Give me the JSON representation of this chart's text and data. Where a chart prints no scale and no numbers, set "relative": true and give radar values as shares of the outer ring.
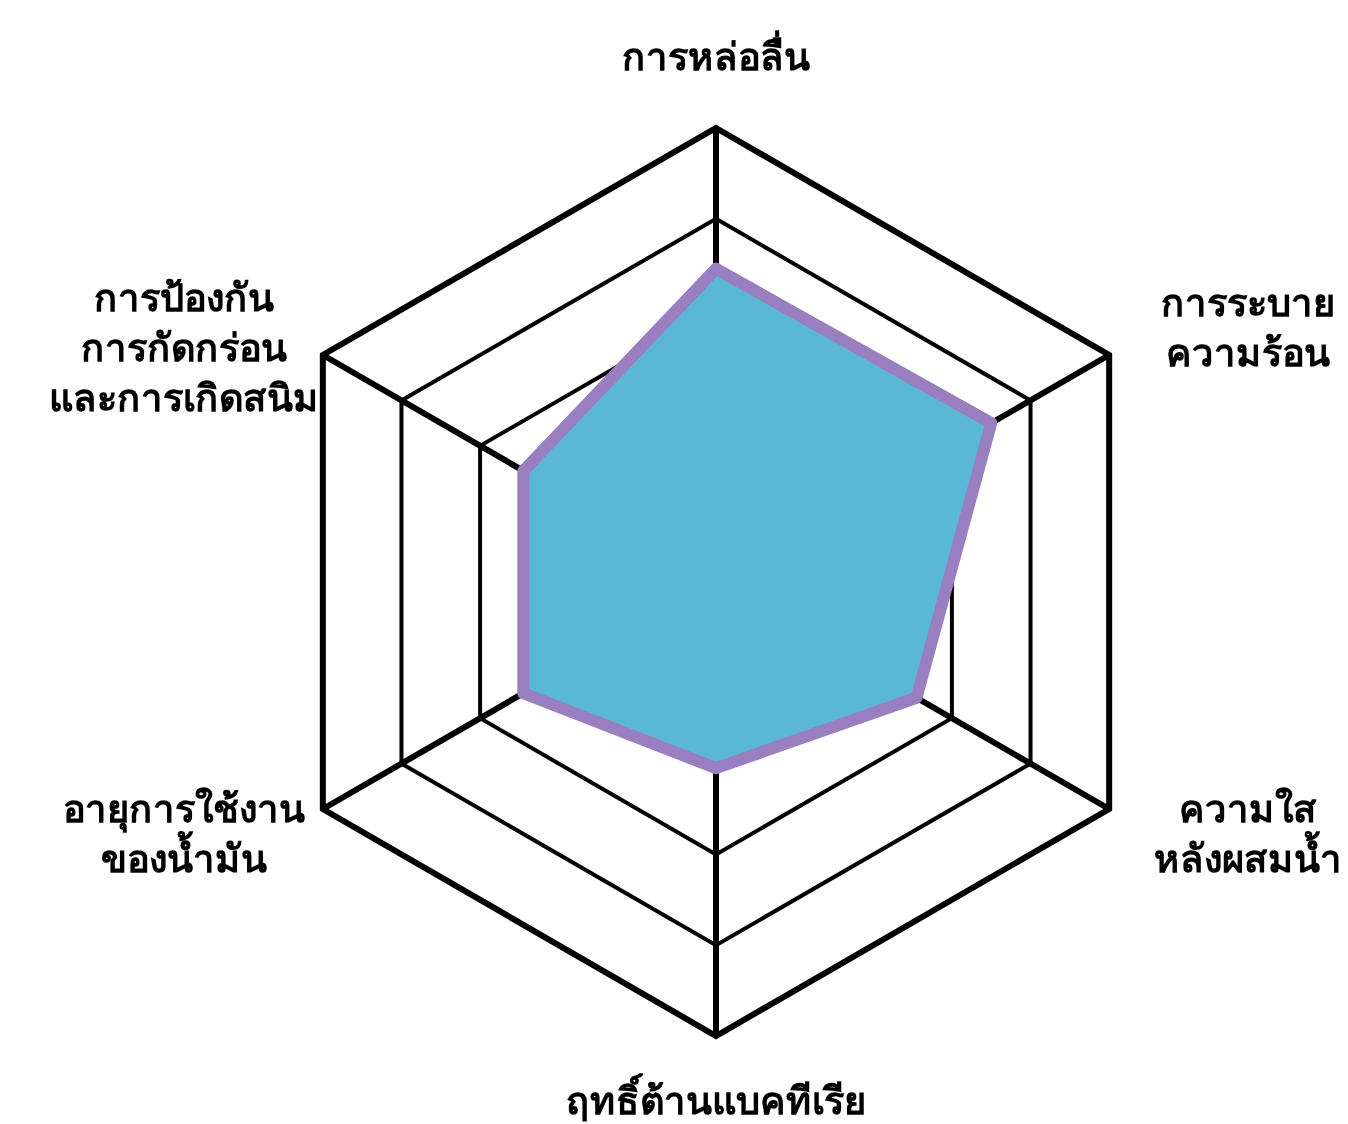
{
  "chart_data": {
    "type": "radar",
    "relative": true,
    "categories": [
      "การหล่อลื่น",
      "การระบาย\nความร้อน",
      "ความใส\nหลังผสมน้ำ",
      "ฤทธิ์ต้านแบคทีเรีย",
      "อายุการใช้งาน\nของน้ำมัน",
      "การป้องกัน\nการกัดกร่อน\nและการเกิดสนิม"
    ],
    "series": [
      {
        "color": "#9a7fc0",
        "values": [
          0.69,
          0.7,
          0.51,
          0.41,
          0.49,
          0.49
        ]
      }
    ]
  }
}
